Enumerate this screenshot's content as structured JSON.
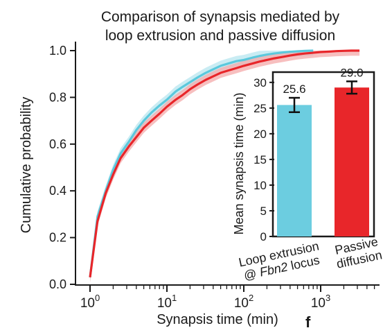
{
  "chart_data": [
    {
      "type": "line",
      "title": [
        "Comparison of synapsis mediated by",
        "loop extrusion and passive diffusion"
      ],
      "xlabel": "Synapsis time (min)",
      "ylabel": "Cumulative probability",
      "x_scale": "log",
      "xlim": [
        0.85,
        8000
      ],
      "ylim": [
        0,
        1.0
      ],
      "x_ticks": [
        {
          "value": 1,
          "base": "10",
          "exp": "0"
        },
        {
          "value": 10,
          "base": "10",
          "exp": "1"
        },
        {
          "value": 100,
          "base": "10",
          "exp": "2"
        },
        {
          "value": 1000,
          "base": "10",
          "exp": "3"
        }
      ],
      "y_ticks": [
        "0.0",
        "0.2",
        "0.4",
        "0.6",
        "0.8",
        "1.0"
      ],
      "grid": false,
      "series": [
        {
          "id": "loop",
          "color": "#5bc8dc",
          "band_color": "#b7e6ef",
          "x": [
            1.0,
            1.25,
            1.6,
            2.0,
            2.5,
            3.2,
            4.0,
            5.0,
            6.3,
            8.0,
            10,
            13,
            16,
            20,
            25,
            32,
            40,
            50,
            63,
            80,
            100,
            130,
            160,
            200,
            250,
            320,
            400,
            500,
            630,
            800
          ],
          "y": [
            0.03,
            0.29,
            0.4,
            0.49,
            0.56,
            0.61,
            0.66,
            0.7,
            0.735,
            0.765,
            0.79,
            0.825,
            0.845,
            0.865,
            0.885,
            0.905,
            0.92,
            0.935,
            0.945,
            0.955,
            0.96,
            0.97,
            0.977,
            0.983,
            0.988,
            0.992,
            0.995,
            0.997,
            0.999,
            1.0
          ]
        },
        {
          "id": "passive",
          "color": "#e8262a",
          "band_color": "#f4a9aa",
          "x": [
            1.0,
            1.25,
            1.6,
            2.0,
            2.5,
            3.2,
            4.0,
            5.0,
            6.3,
            8.0,
            10,
            13,
            16,
            20,
            25,
            32,
            40,
            50,
            63,
            80,
            100,
            130,
            160,
            200,
            250,
            320,
            400,
            500,
            630,
            800,
            1000,
            1300,
            1600,
            2000,
            2500,
            3200
          ],
          "y": [
            0.03,
            0.27,
            0.39,
            0.47,
            0.54,
            0.59,
            0.63,
            0.67,
            0.7,
            0.73,
            0.76,
            0.79,
            0.81,
            0.835,
            0.855,
            0.875,
            0.89,
            0.905,
            0.915,
            0.925,
            0.935,
            0.945,
            0.953,
            0.96,
            0.967,
            0.973,
            0.979,
            0.984,
            0.988,
            0.991,
            0.994,
            0.996,
            0.998,
            0.999,
            1.0,
            1.0
          ]
        }
      ]
    },
    {
      "type": "bar",
      "ylabel": "Mean synapsis time (min)",
      "ylim": [
        0,
        32
      ],
      "y_ticks": [
        "0",
        "5",
        "10",
        "15",
        "20",
        "25",
        "30"
      ],
      "categories": [
        {
          "line1": "Loop extrusion",
          "line2_prefix": "@ ",
          "line2_italic": "Fbn2",
          "line2_suffix": " locus"
        },
        {
          "line1": "Passive",
          "line2": "diffusion"
        }
      ],
      "values": [
        25.6,
        29.0
      ],
      "value_labels": [
        "25.6",
        "29.0"
      ],
      "errors": [
        1.4,
        1.2
      ],
      "colors": [
        "#6ccde0",
        "#e8262a"
      ]
    }
  ],
  "panel_letter": "f"
}
